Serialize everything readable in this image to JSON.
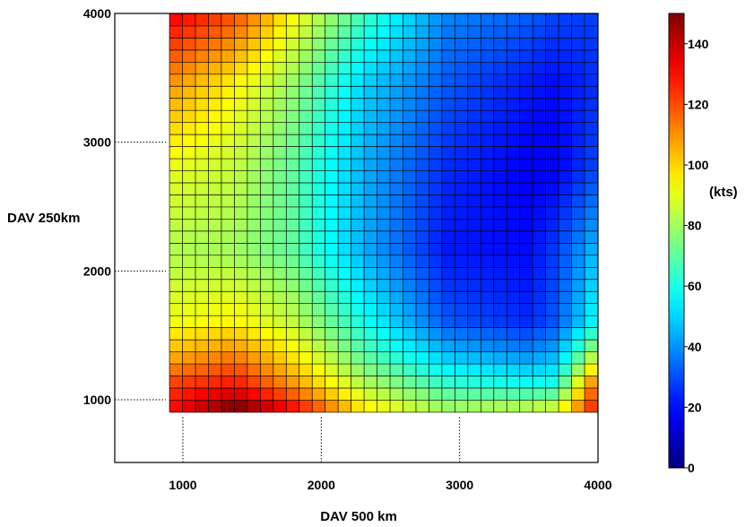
{
  "chart_data": {
    "type": "heatmap",
    "title": "",
    "xlabel": "DAV 500 km",
    "ylabel": "DAV 250km",
    "xlim": [
      900,
      4000
    ],
    "ylim": [
      500,
      4000
    ],
    "x_ticks": [
      1000,
      2000,
      3000,
      4000
    ],
    "y_ticks": [
      1000,
      2000,
      3000,
      4000
    ],
    "grid": true,
    "colorbar": {
      "label": "(kts)",
      "range": [
        0,
        150
      ],
      "ticks": [
        0,
        20,
        40,
        60,
        80,
        100,
        120,
        140
      ],
      "colormap": "jet"
    },
    "grid_x_range": [
      950,
      3950
    ],
    "grid_y_range": [
      950,
      3950
    ],
    "grid_columns": 33,
    "grid_rows": 33,
    "field_anchors": {
      "x": [
        950,
        1375,
        1800,
        2300,
        2900,
        3500,
        3700,
        3950
      ],
      "y": [
        950,
        1100,
        1350,
        1600,
        2150,
        2800,
        3450,
        3950
      ],
      "values_by_row": [
        [
          130,
          150,
          128,
          95,
          78,
          82,
          85,
          122
        ],
        [
          124,
          130,
          110,
          84,
          66,
          60,
          62,
          112
        ],
        [
          105,
          112,
          96,
          70,
          47,
          40,
          45,
          80
        ],
        [
          92,
          95,
          85,
          60,
          32,
          25,
          32,
          55
        ],
        [
          82,
          80,
          70,
          45,
          22,
          20,
          28,
          45
        ],
        [
          90,
          85,
          70,
          45,
          25,
          18,
          18,
          28
        ],
        [
          108,
          95,
          78,
          50,
          32,
          22,
          20,
          25
        ],
        [
          130,
          118,
          92,
          65,
          38,
          32,
          28,
          28
        ]
      ]
    }
  }
}
